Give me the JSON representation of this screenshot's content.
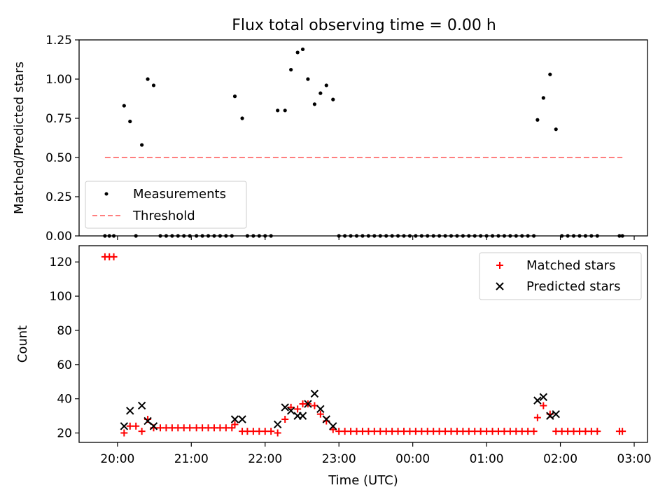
{
  "figure": {
    "title": "Flux total observing time = 0.00 h",
    "xlabel": "Time (UTC)",
    "xticks": [
      {
        "h": 20.0,
        "label": "20:00"
      },
      {
        "h": 21.0,
        "label": "21:00"
      },
      {
        "h": 22.0,
        "label": "22:00"
      },
      {
        "h": 23.0,
        "label": "23:00"
      },
      {
        "h": 24.0,
        "label": "00:00"
      },
      {
        "h": 25.0,
        "label": "01:00"
      },
      {
        "h": 26.0,
        "label": "02:00"
      },
      {
        "h": 27.0,
        "label": "03:00"
      }
    ],
    "xlim": [
      19.48,
      27.18
    ]
  },
  "chart_data": [
    {
      "type": "scatter",
      "ylabel": "Matched/Predicted stars",
      "ylim": [
        0,
        1.25
      ],
      "yticks": [
        "0.00",
        "0.25",
        "0.50",
        "0.75",
        "1.00",
        "1.25"
      ],
      "ytick_values": [
        0,
        0.25,
        0.5,
        0.75,
        1.0,
        1.25
      ],
      "legend_position": "lower-left",
      "series": [
        {
          "name": "Measurements",
          "style": "dots",
          "color": "#000000",
          "x": [
            19.83,
            19.89,
            19.95,
            20.09,
            20.17,
            20.25,
            20.33,
            20.41,
            20.49,
            20.58,
            20.66,
            20.74,
            20.82,
            20.9,
            20.98,
            21.07,
            21.15,
            21.23,
            21.31,
            21.39,
            21.47,
            21.55,
            21.59,
            21.69,
            21.76,
            21.84,
            21.92,
            22.0,
            22.08,
            22.17,
            22.27,
            22.35,
            22.44,
            22.51,
            22.58,
            22.67,
            22.75,
            22.83,
            22.92,
            23.0,
            23.08,
            23.16,
            23.24,
            23.32,
            23.4,
            23.48,
            23.56,
            23.64,
            23.72,
            23.8,
            23.88,
            23.96,
            24.04,
            24.12,
            24.2,
            24.28,
            24.36,
            24.44,
            24.52,
            24.6,
            24.68,
            24.76,
            24.84,
            24.92,
            25.0,
            25.08,
            25.16,
            25.24,
            25.32,
            25.4,
            25.48,
            25.56,
            25.64,
            25.69,
            25.77,
            25.86,
            25.94,
            26.02,
            26.1,
            26.18,
            26.26,
            26.34,
            26.42,
            26.5,
            26.8,
            26.84
          ],
          "y": [
            0,
            0,
            0,
            0.83,
            0.73,
            0,
            0.58,
            1.0,
            0.96,
            0,
            0,
            0,
            0,
            0,
            0,
            0,
            0,
            0,
            0,
            0,
            0,
            0,
            0.89,
            0.75,
            0,
            0,
            0,
            0,
            0,
            0.8,
            0.8,
            1.06,
            1.17,
            1.19,
            1.0,
            0.84,
            0.91,
            0.96,
            0.87,
            0,
            0,
            0,
            0,
            0,
            0,
            0,
            0,
            0,
            0,
            0,
            0,
            0,
            0,
            0,
            0,
            0,
            0,
            0,
            0,
            0,
            0,
            0,
            0,
            0,
            0,
            0,
            0,
            0,
            0,
            0,
            0,
            0,
            0,
            0.74,
            0.88,
            1.03,
            0.68,
            0,
            0,
            0,
            0,
            0,
            0,
            0,
            0,
            0
          ]
        },
        {
          "name": "Threshold",
          "style": "dashed-line",
          "color": "#ff7f7f",
          "x": [
            19.83,
            26.84
          ],
          "y": [
            0.5,
            0.5
          ]
        }
      ]
    },
    {
      "type": "scatter",
      "ylabel": "Count",
      "ylim": [
        14.5,
        129.5
      ],
      "yticks": [
        "20",
        "40",
        "60",
        "80",
        "100",
        "120"
      ],
      "ytick_values": [
        20,
        40,
        60,
        80,
        100,
        120
      ],
      "legend_position": "upper-right",
      "series": [
        {
          "name": "Matched stars",
          "marker": "plus",
          "color": "#ff0000",
          "x": [
            19.83,
            19.89,
            19.95,
            20.09,
            20.17,
            20.25,
            20.33,
            20.41,
            20.49,
            20.58,
            20.66,
            20.74,
            20.82,
            20.9,
            20.98,
            21.07,
            21.15,
            21.23,
            21.31,
            21.39,
            21.47,
            21.55,
            21.59,
            21.69,
            21.76,
            21.84,
            21.92,
            22.0,
            22.08,
            22.17,
            22.27,
            22.35,
            22.44,
            22.51,
            22.58,
            22.67,
            22.75,
            22.83,
            22.92,
            23.0,
            23.08,
            23.16,
            23.24,
            23.32,
            23.4,
            23.48,
            23.56,
            23.64,
            23.72,
            23.8,
            23.88,
            23.96,
            24.04,
            24.12,
            24.2,
            24.28,
            24.36,
            24.44,
            24.52,
            24.6,
            24.68,
            24.76,
            24.84,
            24.92,
            25.0,
            25.08,
            25.16,
            25.24,
            25.32,
            25.4,
            25.48,
            25.56,
            25.64,
            25.69,
            25.77,
            25.86,
            25.94,
            26.02,
            26.1,
            26.18,
            26.26,
            26.34,
            26.42,
            26.5,
            26.8,
            26.84
          ],
          "y": [
            123,
            123,
            123,
            20,
            24,
            24,
            21,
            28,
            23,
            23,
            23,
            23,
            23,
            23,
            23,
            23,
            23,
            23,
            23,
            23,
            23,
            23,
            25,
            21,
            21,
            21,
            21,
            21,
            21,
            20,
            28,
            35,
            34,
            37,
            37,
            36,
            31,
            27,
            22,
            21,
            21,
            21,
            21,
            21,
            21,
            21,
            21,
            21,
            21,
            21,
            21,
            21,
            21,
            21,
            21,
            21,
            21,
            21,
            21,
            21,
            21,
            21,
            21,
            21,
            21,
            21,
            21,
            21,
            21,
            21,
            21,
            21,
            21,
            29,
            36,
            31,
            21,
            21,
            21,
            21,
            21,
            21,
            21,
            21,
            21,
            21
          ]
        },
        {
          "name": "Predicted stars",
          "marker": "x",
          "color": "#000000",
          "x": [
            20.09,
            20.17,
            20.33,
            20.41,
            20.49,
            21.59,
            21.69,
            22.17,
            22.27,
            22.35,
            22.44,
            22.51,
            22.58,
            22.67,
            22.75,
            22.83,
            22.92,
            25.69,
            25.77,
            25.86,
            25.94
          ],
          "y": [
            24,
            33,
            36,
            27,
            24,
            28,
            28,
            25,
            35,
            33,
            30,
            30,
            37,
            43,
            34,
            28,
            24,
            39,
            41,
            30,
            31
          ]
        }
      ]
    }
  ]
}
